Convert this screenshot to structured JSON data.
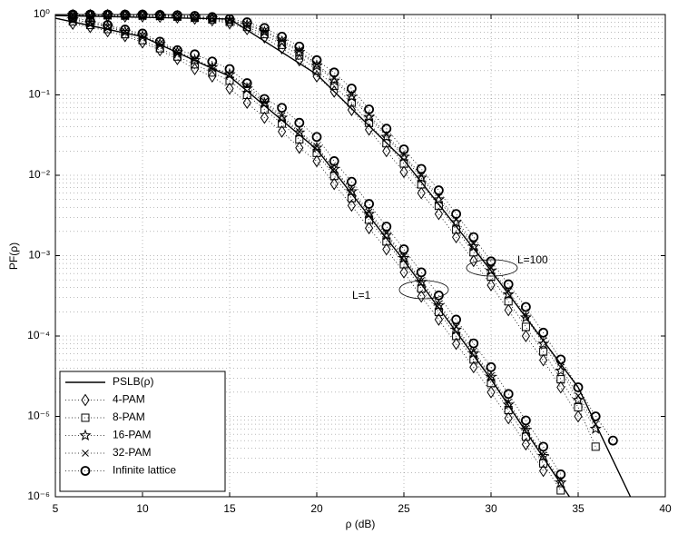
{
  "chart_data": {
    "type": "line",
    "xlabel": "ρ (dB)",
    "ylabel": "PF(ρ)",
    "xlim": [
      5,
      40
    ],
    "xticks": [
      5,
      10,
      15,
      20,
      25,
      30,
      35,
      40
    ],
    "ylim": [
      1e-06,
      1
    ],
    "log_y": true,
    "grid": true,
    "minor_grid": true,
    "legend": "lower left",
    "yticks": [
      {
        "value": 1e-06,
        "label": "10⁻⁶"
      },
      {
        "value": 1e-05,
        "label": "10⁻⁵"
      },
      {
        "value": 0.0001,
        "label": "10⁻⁴"
      },
      {
        "value": 0.001,
        "label": "10⁻³"
      },
      {
        "value": 0.01,
        "label": "10⁻²"
      },
      {
        "value": 0.1,
        "label": "10⁻¹"
      },
      {
        "value": 1,
        "label": "10⁰"
      }
    ],
    "annotations": [
      "L=1",
      "L=100"
    ],
    "x": [
      6,
      7,
      8,
      9,
      10,
      11,
      12,
      13,
      14,
      15,
      16,
      17,
      18,
      19,
      20,
      21,
      22,
      23,
      24,
      25,
      26,
      27,
      28,
      29,
      30,
      31,
      32,
      33,
      34,
      35,
      36,
      37
    ],
    "series": [
      {
        "name": "PSLB(ρ)",
        "style": "line",
        "color": "#000000",
        "curves": [
          {
            "x": [
              5,
              10,
              15,
              20,
              25,
              30,
              34.5
            ],
            "values": [
              0.9,
              0.53,
              0.17,
              0.021,
              0.00087,
              2.9e-05,
              1e-06
            ]
          },
          {
            "x": [
              5,
              15,
              20,
              25,
              30,
              35,
              38
            ],
            "values": [
              0.97,
              0.88,
              0.18,
              0.0155,
              0.00065,
              2.3e-05,
              1e-06
            ]
          }
        ]
      },
      {
        "name": "4-PAM",
        "style": "marker",
        "marker": "diamond",
        "color": "#000000",
        "curves": [
          {
            "values": [
              0.77,
              0.7,
              0.62,
              0.54,
              0.45,
              0.36,
              0.28,
              0.21,
              0.17,
              0.12,
              0.08,
              0.052,
              0.035,
              0.022,
              0.015,
              0.0078,
              0.0042,
              0.0022,
              0.0012,
              0.00062,
              0.00031,
              0.00016,
              8e-05,
              4.1e-05,
              2e-05,
              9.5e-06,
              4.5e-06,
              2.1e-06,
              null,
              null,
              null,
              null
            ]
          },
          {
            "values": [
              0.96,
              0.96,
              0.96,
              0.95,
              0.95,
              0.94,
              0.92,
              0.89,
              0.85,
              0.78,
              0.66,
              0.52,
              0.38,
              0.27,
              0.17,
              0.11,
              0.065,
              0.037,
              0.02,
              0.011,
              0.006,
              0.0033,
              0.0017,
              0.00086,
              0.00043,
              0.00021,
              0.0001,
              5e-05,
              2.3e-05,
              1e-05,
              null,
              null
            ]
          }
        ]
      },
      {
        "name": "8-PAM",
        "style": "marker",
        "marker": "square",
        "color": "#000000",
        "curves": [
          {
            "values": [
              0.82,
              0.74,
              0.66,
              0.57,
              0.48,
              0.38,
              0.3,
              0.24,
              0.19,
              0.15,
              0.1,
              0.066,
              0.044,
              0.028,
              0.019,
              0.0098,
              0.0052,
              0.0028,
              0.0015,
              0.00078,
              0.00039,
              0.0002,
              0.0001,
              5.1e-05,
              2.6e-05,
              1.2e-05,
              5.6e-06,
              2.6e-06,
              1.2e-06,
              null,
              null,
              null
            ]
          },
          {
            "values": [
              0.98,
              0.98,
              0.98,
              0.97,
              0.97,
              0.96,
              0.94,
              0.91,
              0.87,
              0.81,
              0.7,
              0.57,
              0.42,
              0.31,
              0.2,
              0.13,
              0.08,
              0.045,
              0.025,
              0.014,
              0.0077,
              0.0042,
              0.0021,
              0.0011,
              0.00055,
              0.00027,
              0.00013,
              6.4e-05,
              2.9e-05,
              1.3e-05,
              4.2e-06,
              null
            ]
          }
        ]
      },
      {
        "name": "16-PAM",
        "style": "marker",
        "marker": "star",
        "color": "#000000",
        "curves": [
          {
            "values": [
              0.87,
              0.78,
              0.7,
              0.61,
              0.54,
              0.43,
              0.34,
              0.27,
              0.22,
              0.18,
              0.12,
              0.079,
              0.052,
              0.034,
              0.022,
              0.012,
              0.0063,
              0.0033,
              0.0018,
              0.00093,
              0.00047,
              0.00024,
              0.00012,
              6.1e-05,
              3.1e-05,
              1.4e-05,
              6.8e-06,
              3.2e-06,
              1.5e-06,
              null,
              null,
              null
            ]
          },
          {
            "values": [
              0.99,
              0.99,
              0.99,
              0.98,
              0.98,
              0.97,
              0.96,
              0.93,
              0.89,
              0.84,
              0.74,
              0.61,
              0.46,
              0.34,
              0.23,
              0.15,
              0.095,
              0.053,
              0.03,
              0.017,
              0.0093,
              0.005,
              0.0026,
              0.0013,
              0.00065,
              0.00033,
              0.00017,
              8e-05,
              3.7e-05,
              1.6e-05,
              7e-06,
              null
            ]
          }
        ]
      },
      {
        "name": "32-PAM",
        "style": "marker",
        "marker": "cross",
        "color": "#000000",
        "curves": [
          {
            "values": [
              0.87,
              0.79,
              0.71,
              0.62,
              0.55,
              0.44,
              0.35,
              0.28,
              0.22,
              0.18,
              0.13,
              0.083,
              0.055,
              0.035,
              0.023,
              0.012,
              0.0066,
              0.0035,
              0.0019,
              0.00098,
              0.00049,
              0.00025,
              0.00013,
              6.5e-05,
              3.2e-05,
              1.5e-05,
              7.1e-06,
              3.3e-06,
              1.6e-06,
              null,
              null,
              null
            ]
          },
          {
            "values": [
              0.99,
              0.99,
              0.99,
              0.99,
              0.99,
              0.98,
              0.97,
              0.94,
              0.9,
              0.85,
              0.76,
              0.63,
              0.48,
              0.36,
              0.24,
              0.16,
              0.1,
              0.057,
              0.032,
              0.018,
              0.0099,
              0.0054,
              0.0028,
              0.0014,
              0.0007,
              0.00036,
              0.00018,
              8.8e-05,
              4.1e-05,
              1.8e-05,
              8e-06,
              null
            ]
          }
        ]
      },
      {
        "name": "Infinite lattice",
        "style": "marker",
        "marker": "circle",
        "color": "#000000",
        "curves": [
          {
            "values": [
              0.91,
              0.83,
              0.74,
              0.65,
              0.58,
              0.46,
              0.36,
              0.32,
              0.26,
              0.21,
              0.14,
              0.089,
              0.069,
              0.045,
              0.03,
              0.015,
              0.0083,
              0.0044,
              0.0023,
              0.0012,
              0.00062,
              0.00032,
              0.00016,
              8.1e-05,
              4.1e-05,
              1.9e-05,
              8.9e-06,
              4.2e-06,
              1.9e-06,
              null,
              null,
              null
            ]
          },
          {
            "values": [
              1,
              1,
              1,
              1,
              1,
              0.99,
              0.98,
              0.96,
              0.93,
              0.88,
              0.8,
              0.68,
              0.53,
              0.4,
              0.27,
              0.19,
              0.12,
              0.066,
              0.038,
              0.021,
              0.012,
              0.0065,
              0.0033,
              0.0017,
              0.00085,
              0.00044,
              0.00023,
              0.00011,
              5.1e-05,
              2.3e-05,
              1e-05,
              5e-06
            ]
          }
        ]
      }
    ]
  }
}
